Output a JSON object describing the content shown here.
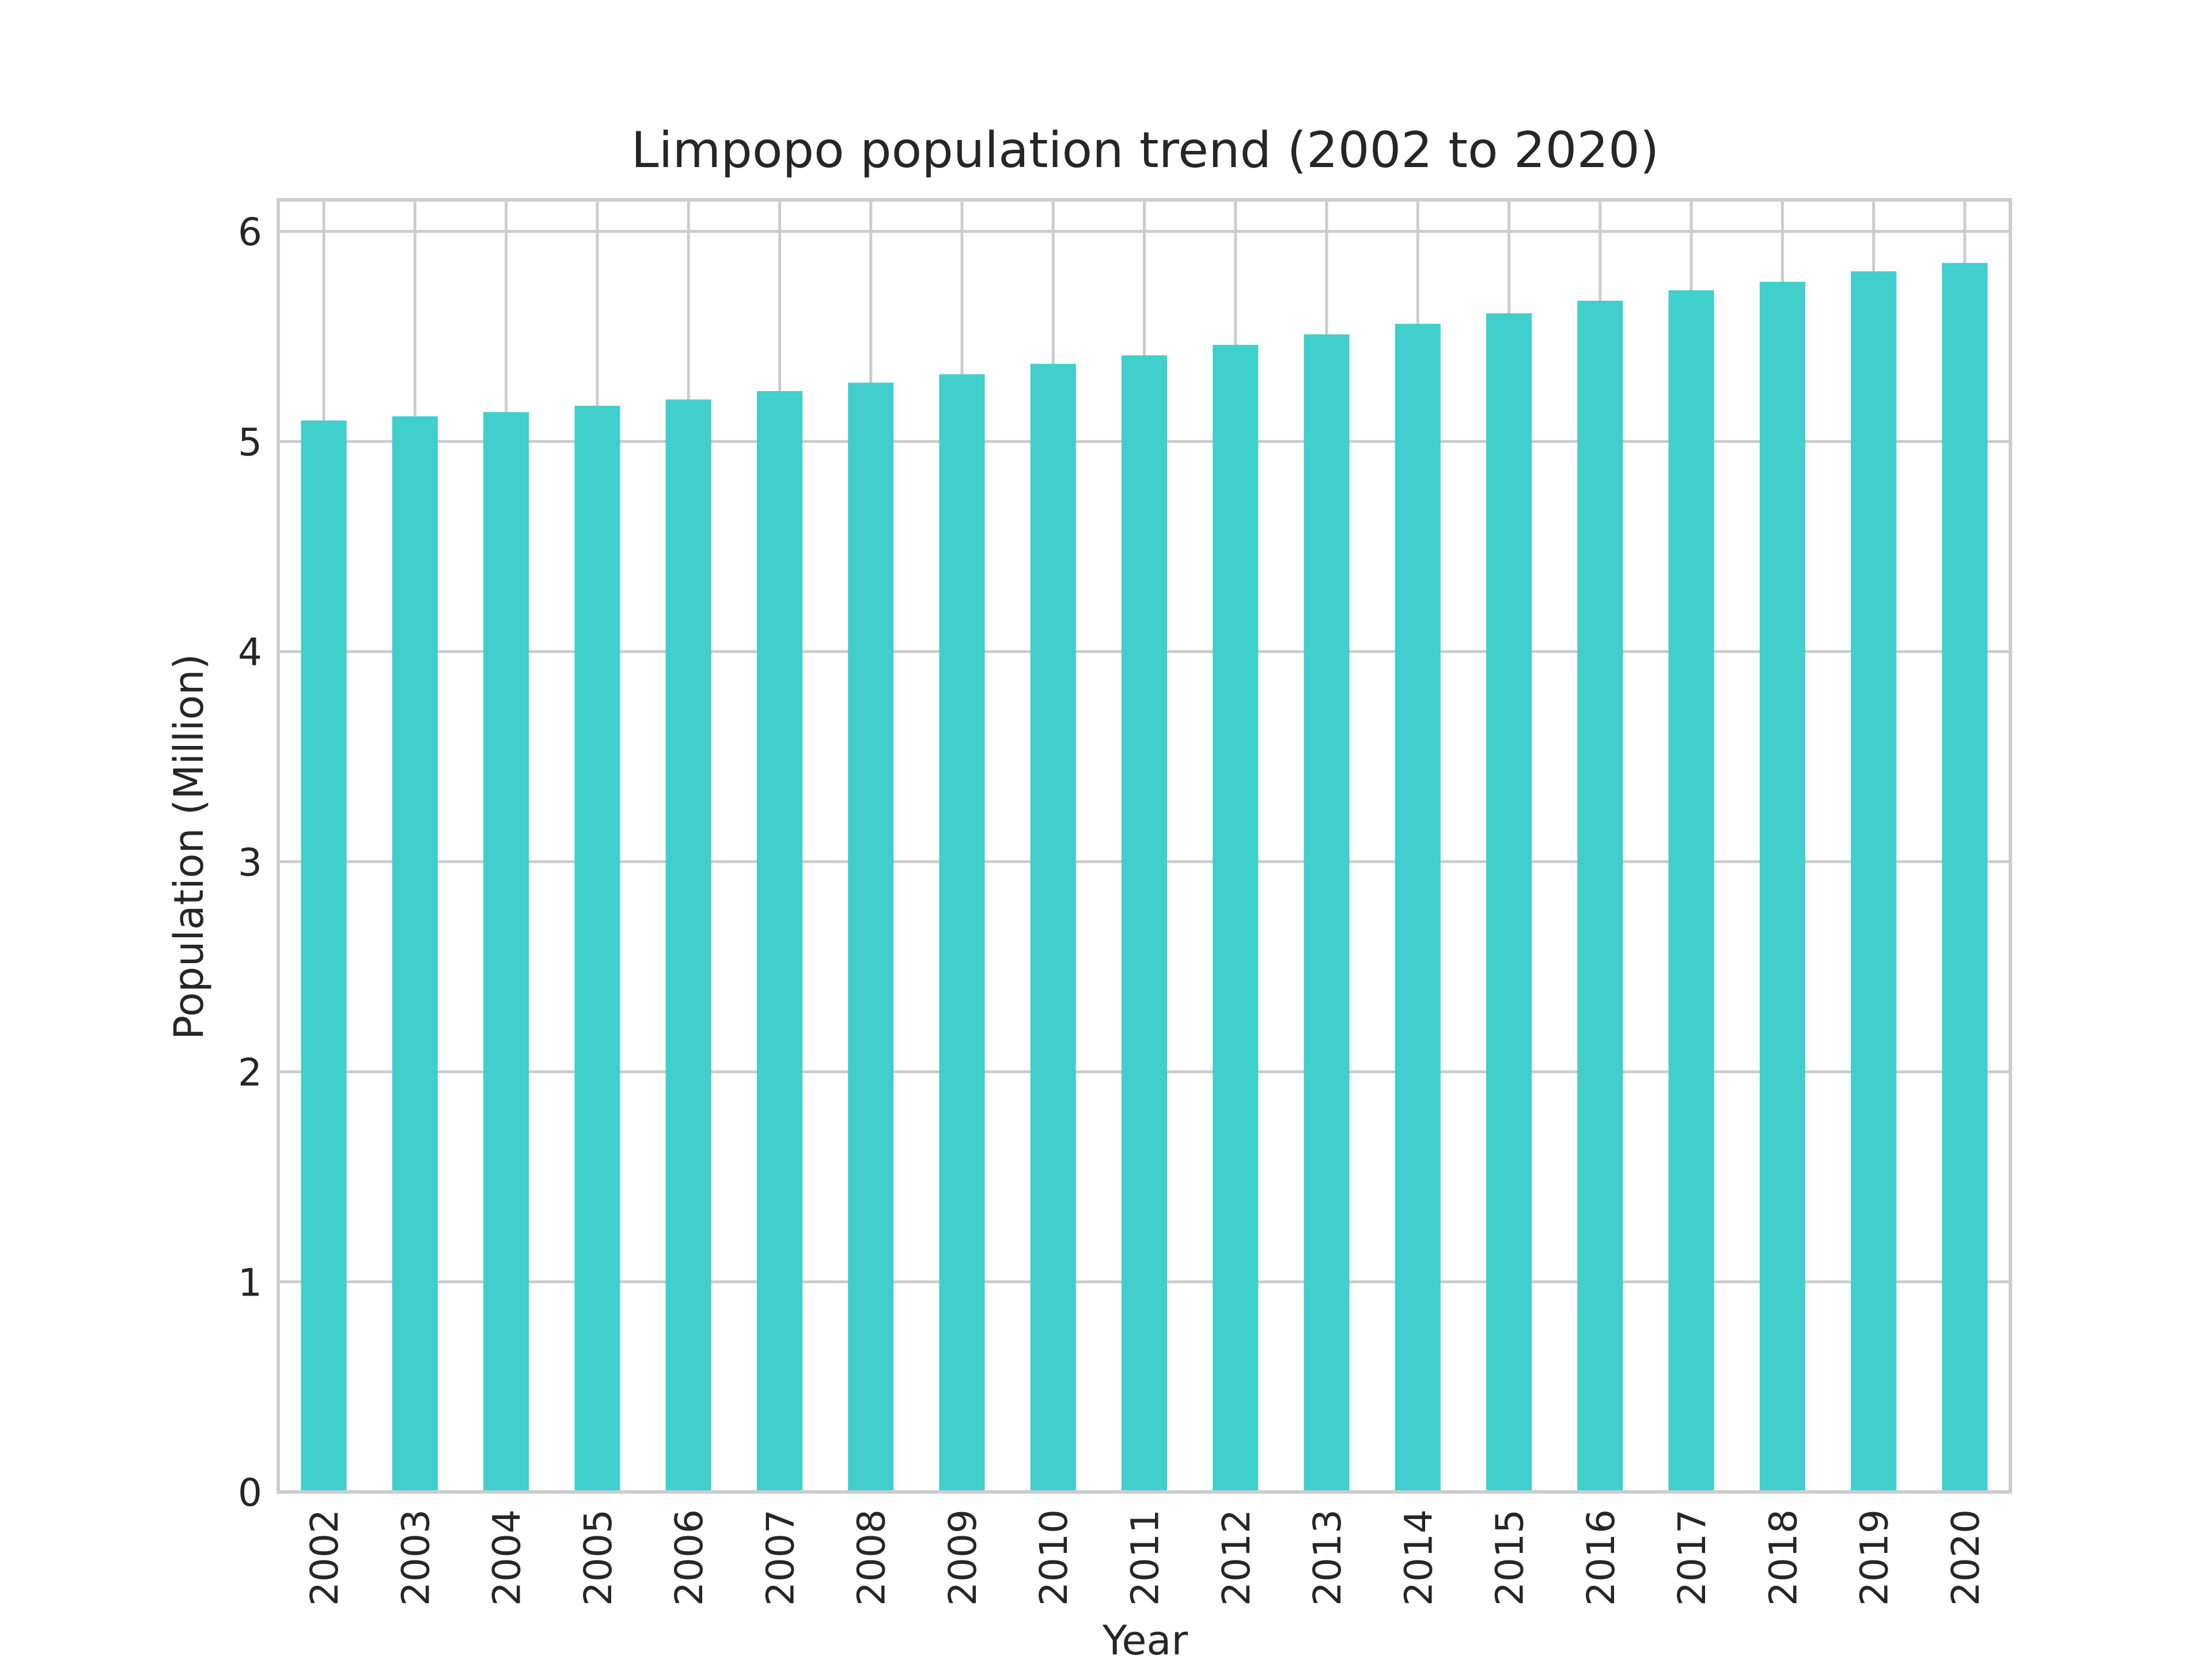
{
  "chart_data": {
    "type": "bar",
    "title": "Limpopo population trend (2002 to 2020)",
    "xlabel": "Year",
    "ylabel": "Population (Million)",
    "categories": [
      "2002",
      "2003",
      "2004",
      "2005",
      "2006",
      "2007",
      "2008",
      "2009",
      "2010",
      "2011",
      "2012",
      "2013",
      "2014",
      "2015",
      "2016",
      "2017",
      "2018",
      "2019",
      "2020"
    ],
    "values": [
      5.1,
      5.12,
      5.14,
      5.17,
      5.2,
      5.24,
      5.28,
      5.32,
      5.37,
      5.41,
      5.46,
      5.51,
      5.56,
      5.61,
      5.67,
      5.72,
      5.76,
      5.81,
      5.85
    ],
    "ylim": [
      0,
      6.15
    ],
    "yticks": [
      "0",
      "1",
      "2",
      "3",
      "4",
      "5",
      "6"
    ],
    "grid": true,
    "bar_color": "#40cfcc",
    "grid_color": "#cccccc",
    "text_color": "#262626"
  }
}
